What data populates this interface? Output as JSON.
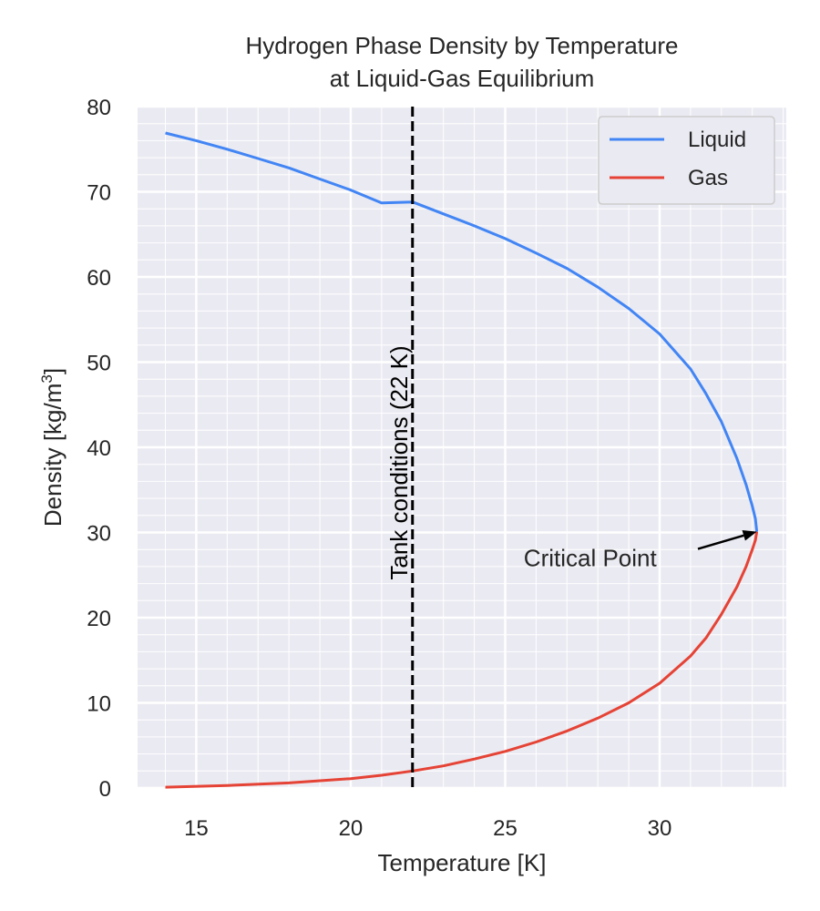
{
  "chart_data": {
    "type": "line",
    "title_line1": "Hydrogen Phase Density by Temperature",
    "title_line2": "at Liquid-Gas Equilibrium",
    "xlabel": "Temperature [K]",
    "ylabel": "Density [kg/m",
    "ylabel_sup": "3",
    "ylabel_end": "]",
    "xlim": [
      13.1,
      34.1
    ],
    "ylim": [
      0,
      80
    ],
    "xticks": [
      15,
      20,
      25,
      30
    ],
    "yticks": [
      0,
      10,
      20,
      30,
      40,
      50,
      60,
      70,
      80
    ],
    "grid": true,
    "minor_grid": true,
    "legend_position": "top-right",
    "series": [
      {
        "name": "Liquid",
        "color": "#4285f4",
        "x": [
          14.0,
          15.0,
          16.0,
          17.0,
          18.0,
          19.0,
          20.0,
          21.0,
          22.0,
          23.0,
          24.0,
          25.0,
          26.0,
          27.0,
          28.0,
          29.0,
          30.0,
          31.0,
          31.5,
          32.0,
          32.5,
          32.8,
          33.0,
          33.1,
          33.145
        ],
        "y": [
          76.9,
          76.0,
          75.0,
          73.9,
          72.8,
          71.5,
          70.2,
          68.7,
          68.8,
          67.4,
          66.0,
          64.5,
          62.8,
          61.0,
          58.8,
          56.3,
          53.3,
          49.2,
          46.3,
          43.0,
          38.7,
          35.6,
          33.1,
          31.6,
          30.1
        ]
      },
      {
        "name": "Gas",
        "color": "#e54335",
        "x": [
          14.0,
          16.0,
          18.0,
          20.0,
          21.0,
          22.0,
          23.0,
          24.0,
          25.0,
          26.0,
          27.0,
          28.0,
          29.0,
          30.0,
          31.0,
          31.5,
          32.0,
          32.5,
          32.8,
          33.0,
          33.1,
          33.145
        ],
        "y": [
          0.1,
          0.3,
          0.6,
          1.1,
          1.5,
          2.0,
          2.6,
          3.4,
          4.3,
          5.4,
          6.7,
          8.2,
          10.0,
          12.3,
          15.5,
          17.6,
          20.4,
          23.6,
          26.0,
          28.0,
          29.1,
          30.1
        ]
      }
    ],
    "vline": {
      "x": 22,
      "label": "Tank conditions (22 K)",
      "color": "#000000"
    },
    "annotation": {
      "text": "Critical Point",
      "point": [
        33.145,
        30.1
      ],
      "text_pos": [
        25.6,
        27
      ]
    }
  }
}
